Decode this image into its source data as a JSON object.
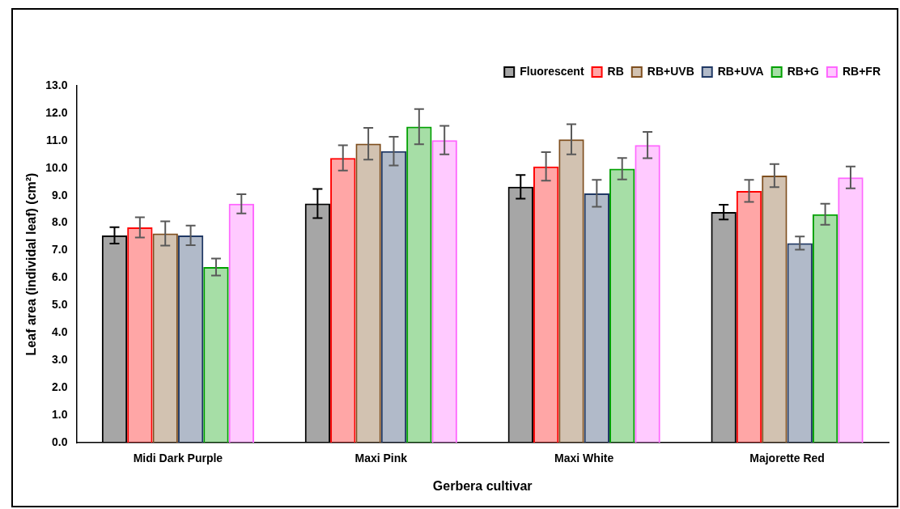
{
  "chart_data": {
    "type": "bar",
    "xlabel": "Gerbera cultivar",
    "ylabel": "Leaf area (individal leaf) (cm²)",
    "categories": [
      "Midi Dark Purple",
      "Maxi Pink",
      "Maxi White",
      "Majorette Red"
    ],
    "ylim": [
      0,
      13
    ],
    "yticks": [
      {
        "value": 0,
        "label": "0.0"
      },
      {
        "value": 1,
        "label": "1.0"
      },
      {
        "value": 2,
        "label": "2.0"
      },
      {
        "value": 3,
        "label": "3.0"
      },
      {
        "value": 4,
        "label": "4.0"
      },
      {
        "value": 5,
        "label": "5.0"
      },
      {
        "value": 6,
        "label": "6.0"
      },
      {
        "value": 7,
        "label": "7.0"
      },
      {
        "value": 8,
        "label": "8.0"
      },
      {
        "value": 9,
        "label": "9.0"
      },
      {
        "value": 10,
        "label": "10.0"
      },
      {
        "value": 11,
        "label": "11.0"
      },
      {
        "value": 12,
        "label": "12.0"
      },
      {
        "value": 13,
        "label": "13.0"
      }
    ],
    "grid": false,
    "legend": "top right",
    "series": [
      {
        "name": "Fluorescent",
        "color": "#000000",
        "values": [
          7.55,
          8.71,
          9.32,
          8.4
        ],
        "errors": [
          0.3,
          0.53,
          0.43,
          0.27
        ]
      },
      {
        "name": "RB",
        "color": "#ff0000",
        "values": [
          7.84,
          10.37,
          10.06,
          9.17
        ],
        "errors": [
          0.37,
          0.46,
          0.52,
          0.4
        ]
      },
      {
        "name": "RB+UVB",
        "color": "#7f4f1f",
        "values": [
          7.62,
          10.89,
          11.05,
          9.73
        ],
        "errors": [
          0.44,
          0.58,
          0.55,
          0.42
        ]
      },
      {
        "name": "RB+UVA",
        "color": "#203864",
        "values": [
          7.55,
          10.62,
          9.08,
          7.27
        ],
        "errors": [
          0.36,
          0.52,
          0.49,
          0.24
        ]
      },
      {
        "name": "RB+G",
        "color": "#00a000",
        "values": [
          6.4,
          11.51,
          9.98,
          8.32
        ],
        "errors": [
          0.31,
          0.64,
          0.39,
          0.38
        ]
      },
      {
        "name": "RB+FR",
        "color": "#ff66ff",
        "values": [
          8.7,
          11.02,
          10.84,
          9.66
        ],
        "errors": [
          0.35,
          0.52,
          0.48,
          0.4
        ]
      }
    ]
  }
}
